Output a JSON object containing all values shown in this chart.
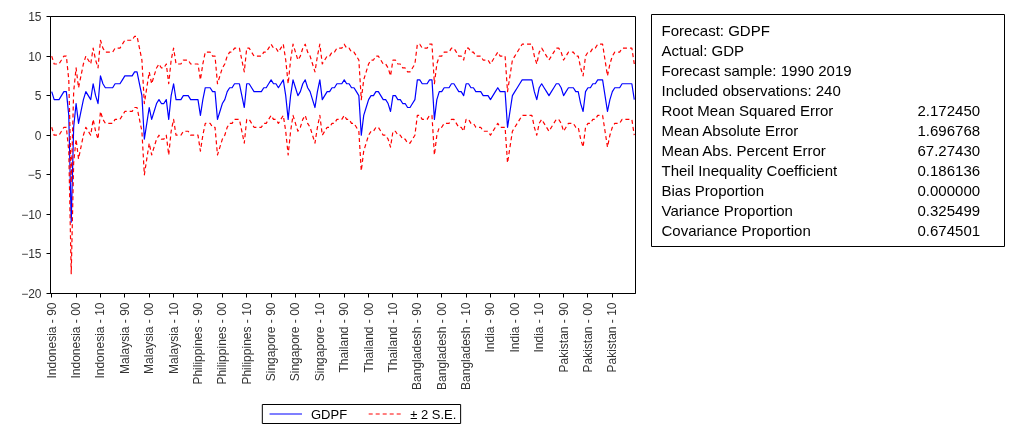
{
  "chart_data": [
    {
      "type": "line",
      "categories": [
        "Indonesia - 90",
        null,
        null,
        null,
        null,
        null,
        null,
        null,
        null,
        null,
        "Indonesia - 00",
        null,
        null,
        null,
        null,
        null,
        null,
        null,
        null,
        null,
        "Indonesia - 10",
        null,
        null,
        null,
        null,
        null,
        null,
        null,
        null,
        null,
        "Malaysia - 90",
        null,
        null,
        null,
        null,
        null,
        null,
        null,
        null,
        null,
        "Malaysia - 00",
        null,
        null,
        null,
        null,
        null,
        null,
        null,
        null,
        null,
        "Malaysia - 10",
        null,
        null,
        null,
        null,
        null,
        null,
        null,
        null,
        null,
        "Philippines - 90",
        null,
        null,
        null,
        null,
        null,
        null,
        null,
        null,
        null,
        "Philippines - 00",
        null,
        null,
        null,
        null,
        null,
        null,
        null,
        null,
        null,
        "Philippines - 10",
        null,
        null,
        null,
        null,
        null,
        null,
        null,
        null,
        null,
        "Singapore - 90",
        null,
        null,
        null,
        null,
        null,
        null,
        null,
        null,
        null,
        "Singapore - 00",
        null,
        null,
        null,
        null,
        null,
        null,
        null,
        null,
        null,
        "Singapore - 10",
        null,
        null,
        null,
        null,
        null,
        null,
        null,
        null,
        null,
        "Thailand - 90",
        null,
        null,
        null,
        null,
        null,
        null,
        null,
        null,
        null,
        "Thailand - 00",
        null,
        null,
        null,
        null,
        null,
        null,
        null,
        null,
        null,
        "Thailand - 10",
        null,
        null,
        null,
        null,
        null,
        null,
        null,
        null,
        null,
        "Bangladesh - 90",
        null,
        null,
        null,
        null,
        null,
        null,
        null,
        null,
        null,
        "Bangladesh - 00",
        null,
        null,
        null,
        null,
        null,
        null,
        null,
        null,
        null,
        "Bangladesh - 10",
        null,
        null,
        null,
        null,
        null,
        null,
        null,
        null,
        null,
        "India - 90",
        null,
        null,
        null,
        null,
        null,
        null,
        null,
        null,
        null,
        "India - 00",
        null,
        null,
        null,
        null,
        null,
        null,
        null,
        null,
        null,
        "India - 10",
        null,
        null,
        null,
        null,
        null,
        null,
        null,
        null,
        null,
        "Pakistan - 90",
        null,
        null,
        null,
        null,
        null,
        null,
        null,
        null,
        null,
        "Pakistan - 00",
        null,
        null,
        null,
        null,
        null,
        null,
        null,
        null,
        null,
        "Pakistan - 10",
        null,
        null,
        null,
        null,
        null,
        null,
        null,
        null,
        null
      ],
      "series": [
        {
          "name": "GDPF",
          "color": "#0000ff",
          "line_style": "solid",
          "values": [
            5.5,
            4.5,
            4.5,
            4.5,
            5,
            5.5,
            5.5,
            2.5,
            -11,
            1,
            4,
            1.5,
            3,
            4.5,
            5.5,
            5,
            4.5,
            6.5,
            5,
            4,
            7.5,
            6.5,
            6,
            6,
            6,
            6,
            6.5,
            6.5,
            6.5,
            7,
            7.5,
            7.5,
            7.5,
            7.5,
            8,
            8,
            6.5,
            5,
            -0.5,
            1.5,
            3.5,
            2,
            3,
            4,
            4.5,
            4,
            4,
            4.5,
            2,
            5,
            6.5,
            4.5,
            4.5,
            4.5,
            5,
            5,
            5,
            4.5,
            4.5,
            4.5,
            4.5,
            2.5,
            4.5,
            6,
            6,
            6,
            5.5,
            5.5,
            2,
            3,
            4,
            4.5,
            5.5,
            6,
            6,
            6.5,
            6.5,
            6.5,
            5,
            3.5,
            6.5,
            6.5,
            6,
            5.5,
            5.5,
            5.5,
            5.5,
            6,
            6,
            6.5,
            7,
            6.5,
            6.5,
            6,
            6.5,
            7,
            5,
            2,
            5,
            7,
            6,
            5,
            5.5,
            6.5,
            7,
            6,
            5.5,
            4.5,
            3.5,
            5.5,
            7,
            4.5,
            5,
            5.5,
            5.5,
            6,
            6,
            6.5,
            6.5,
            6.5,
            7,
            6.5,
            6.5,
            6,
            6,
            5.5,
            5,
            0,
            2.5,
            3.5,
            4.5,
            5,
            5,
            5.5,
            5.5,
            5,
            4.5,
            4.5,
            4,
            3,
            5,
            5,
            4.5,
            4.5,
            4,
            4,
            3.5,
            3.5,
            4,
            4.5,
            7,
            7,
            6.5,
            6.5,
            6.5,
            7,
            7,
            2,
            4.5,
            5.5,
            5.5,
            6,
            6,
            6,
            6.5,
            6.5,
            6,
            5.5,
            5.5,
            5,
            6.5,
            6.5,
            6,
            6,
            5.5,
            5.5,
            5.5,
            5,
            5,
            5,
            4.5,
            5,
            5.5,
            6,
            5.5,
            5.5,
            5.5,
            1,
            3,
            5,
            5.5,
            6,
            6.5,
            7,
            7,
            7,
            7,
            7,
            5.5,
            4.5,
            6,
            6.5,
            6,
            5.5,
            5,
            5.5,
            6,
            6.5,
            6.5,
            6,
            5,
            5.5,
            6,
            6,
            6,
            5.5,
            5.5,
            4,
            3,
            5.5,
            6,
            6,
            6.5,
            6.5,
            7,
            7,
            7,
            5,
            3,
            4.5,
            5.5,
            6,
            6,
            6,
            6.5,
            6.5,
            6.5,
            6.5,
            6.5,
            4.5
          ]
        },
        {
          "name": "± 2 S.E.",
          "color": "#ff0000",
          "line_style": "dashed",
          "values": [
            10,
            9,
            9,
            9,
            9.5,
            10,
            10,
            7,
            -6,
            5.5,
            8.5,
            6,
            7.5,
            9,
            10,
            9.5,
            9,
            11,
            9.5,
            8.5,
            12,
            11,
            10.5,
            10.5,
            10.5,
            10.5,
            11,
            11,
            11,
            11.5,
            12,
            12,
            12,
            12,
            12.5,
            12.5,
            11,
            9.5,
            4,
            6,
            8,
            6.5,
            7.5,
            8.5,
            9,
            8.5,
            8.5,
            9,
            6.5,
            9.5,
            11,
            9,
            9,
            9,
            9.5,
            9.5,
            9.5,
            9,
            9,
            9,
            9,
            7,
            9,
            10.5,
            10.5,
            10.5,
            10,
            10,
            6.5,
            7.5,
            8.5,
            9,
            10,
            10.5,
            10.5,
            11,
            11,
            11,
            9.5,
            8,
            11,
            11,
            10.5,
            10,
            10,
            10,
            10,
            10.5,
            10.5,
            11,
            11.5,
            11,
            11,
            10.5,
            11,
            11.5,
            9.5,
            6.5,
            9.5,
            11.5,
            10.5,
            9.5,
            10,
            11,
            11.5,
            10.5,
            10,
            9,
            8,
            10,
            11.5,
            9,
            9.5,
            10,
            10,
            10.5,
            10.5,
            11,
            11,
            11,
            11.5,
            11,
            11,
            10.5,
            10.5,
            10,
            9.5,
            4.5,
            7,
            8,
            9,
            9.5,
            9.5,
            10,
            10,
            9.5,
            9,
            9,
            8.5,
            7.5,
            9.5,
            9.5,
            9,
            9,
            8.5,
            8.5,
            8,
            8,
            8.5,
            9,
            11.5,
            11.5,
            11,
            11,
            11,
            11.5,
            11.5,
            6.5,
            9,
            10,
            10,
            10.5,
            10.5,
            10.5,
            11,
            11,
            10.5,
            10,
            10,
            9.5,
            11,
            11,
            10.5,
            10.5,
            10,
            10,
            10,
            9.5,
            9.5,
            9.5,
            9,
            9.5,
            10,
            10.5,
            10,
            10,
            10,
            5.5,
            7.5,
            9.5,
            10,
            10.5,
            11,
            11.5,
            11.5,
            11.5,
            11.5,
            11.5,
            10,
            9,
            10.5,
            11,
            10.5,
            10,
            9.5,
            10,
            10.5,
            11,
            11,
            10.5,
            9.5,
            10,
            10.5,
            10.5,
            10.5,
            10,
            10,
            8.5,
            7.5,
            10,
            10.5,
            10.5,
            11,
            11,
            11.5,
            11.5,
            11.5,
            9.5,
            7.5,
            9,
            10,
            10.5,
            10.5,
            10.5,
            11,
            11,
            11,
            11,
            11,
            9
          ]
        },
        {
          "color": "#ff0000",
          "line_style": "dashed",
          "values": [
            1,
            0,
            0,
            0,
            0.5,
            1,
            1,
            -2,
            -17.5,
            -3.5,
            -0.5,
            -3,
            -1.5,
            0,
            1,
            0.5,
            0,
            2,
            0.5,
            -0.5,
            3,
            2,
            1.5,
            1.5,
            1.5,
            1.5,
            2,
            2,
            2,
            2.5,
            3,
            3,
            3,
            3,
            3.5,
            3.5,
            2,
            0.5,
            -5,
            -3,
            -1,
            -2.5,
            -1.5,
            -0.5,
            0,
            -0.5,
            -0.5,
            0,
            -2.5,
            0.5,
            2,
            0,
            0,
            0,
            0.5,
            0.5,
            0.5,
            0,
            0,
            0,
            0,
            -2,
            0,
            1.5,
            1.5,
            1.5,
            1,
            1,
            -2.5,
            -1.5,
            -0.5,
            0,
            1,
            1.5,
            1.5,
            2,
            2,
            2,
            0.5,
            -1,
            2,
            2,
            1.5,
            1,
            1,
            1,
            1,
            1.5,
            1.5,
            2,
            2.5,
            2,
            2,
            1.5,
            2,
            2.5,
            0.5,
            -2.5,
            0.5,
            2.5,
            1.5,
            0.5,
            1,
            2,
            2.5,
            1.5,
            1,
            0,
            -1,
            1,
            2.5,
            0,
            0.5,
            1,
            1,
            1.5,
            1.5,
            2,
            2,
            2,
            2.5,
            2,
            2,
            1.5,
            1.5,
            1,
            0.5,
            -4.5,
            -2,
            -1,
            0,
            0.5,
            0.5,
            1,
            1,
            0.5,
            0,
            0,
            -0.5,
            -1.5,
            0.5,
            0.5,
            0,
            0,
            -0.5,
            -0.5,
            -1,
            -1,
            -0.5,
            0,
            2.5,
            2.5,
            2,
            2,
            2,
            2.5,
            2.5,
            -2.5,
            0,
            1,
            1,
            1.5,
            1.5,
            1.5,
            2,
            2,
            1.5,
            1,
            1,
            0.5,
            2,
            2,
            1.5,
            1.5,
            1,
            1,
            1,
            0.5,
            0.5,
            0.5,
            0,
            0.5,
            1,
            1.5,
            1,
            1,
            1,
            -3.5,
            -1.5,
            0.5,
            1,
            1.5,
            2,
            2.5,
            2.5,
            2.5,
            2.5,
            2.5,
            1,
            0,
            1.5,
            2,
            1.5,
            1,
            0.5,
            1,
            1.5,
            2,
            2,
            1.5,
            0.5,
            1,
            1.5,
            1.5,
            1.5,
            1,
            1,
            -0.5,
            -1.5,
            1,
            1.5,
            1.5,
            2,
            2,
            2.5,
            2.5,
            2.5,
            0.5,
            -1.5,
            0,
            1,
            1.5,
            1.5,
            1.5,
            2,
            2,
            2,
            2,
            2,
            0
          ]
        }
      ],
      "ylim": [
        -20,
        15
      ],
      "yticks": [
        -20,
        -15,
        -10,
        -5,
        0,
        5,
        10,
        15
      ],
      "legend": "bottom"
    },
    {
      "type": "other",
      "categories": [
        "Forecast: GDPF",
        "Actual: GDP",
        "Forecast sample: 1990 2019",
        "Included observations: 240",
        "Root Mean Squared Error",
        "Mean Absolute Error",
        "Mean Abs. Percent Error",
        "Theil Inequality Coefficient",
        "Bias Proportion",
        "Variance Proportion",
        "Covariance Proportion"
      ],
      "value_labels": [
        null,
        null,
        null,
        null,
        "2.172450",
        "1.696768",
        "67.27430",
        "0.186136",
        "0.000000",
        "0.325499",
        "0.674501"
      ]
    }
  ]
}
